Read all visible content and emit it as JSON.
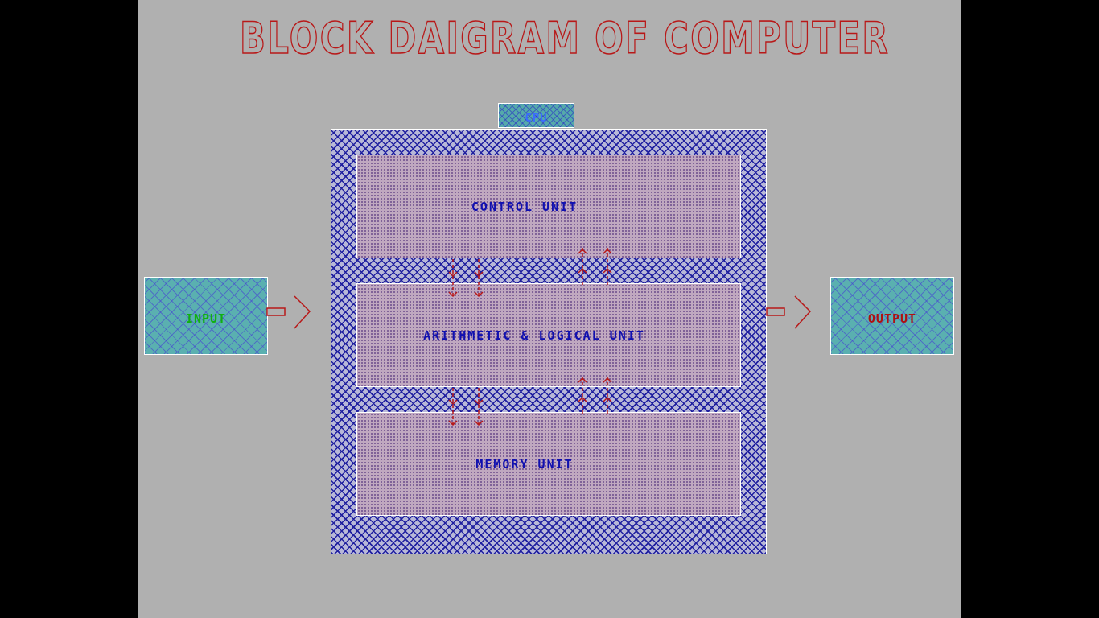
{
  "title": "BLOCK DAIGRAM OF COMPUTER",
  "cpu": {
    "label": "CPU"
  },
  "units": {
    "control": "CONTROL UNIT",
    "alu": "ARITHMETIC & LOGICAL UNIT",
    "memory": "MEMORY UNIT"
  },
  "input": {
    "label": "INPUT"
  },
  "output": {
    "label": "OUTPUT"
  },
  "colors": {
    "background": "#b0b0b0",
    "title": "#b81818",
    "unit_text": "#1010b0",
    "input_text": "#10b010",
    "output_text": "#b01010",
    "arrows": "#b81818"
  }
}
